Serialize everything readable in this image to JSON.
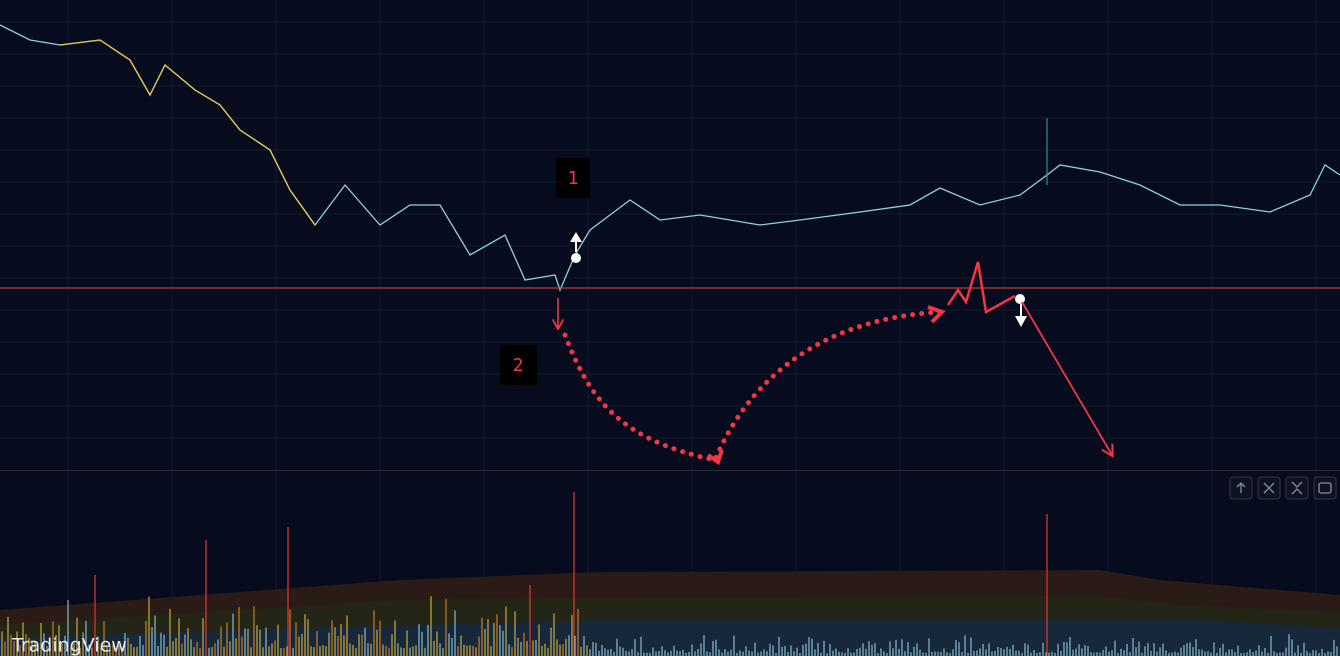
{
  "annotations": {
    "marker_1": "1",
    "marker_2": "2"
  },
  "footer": {
    "logo": "TradingView"
  }
}
